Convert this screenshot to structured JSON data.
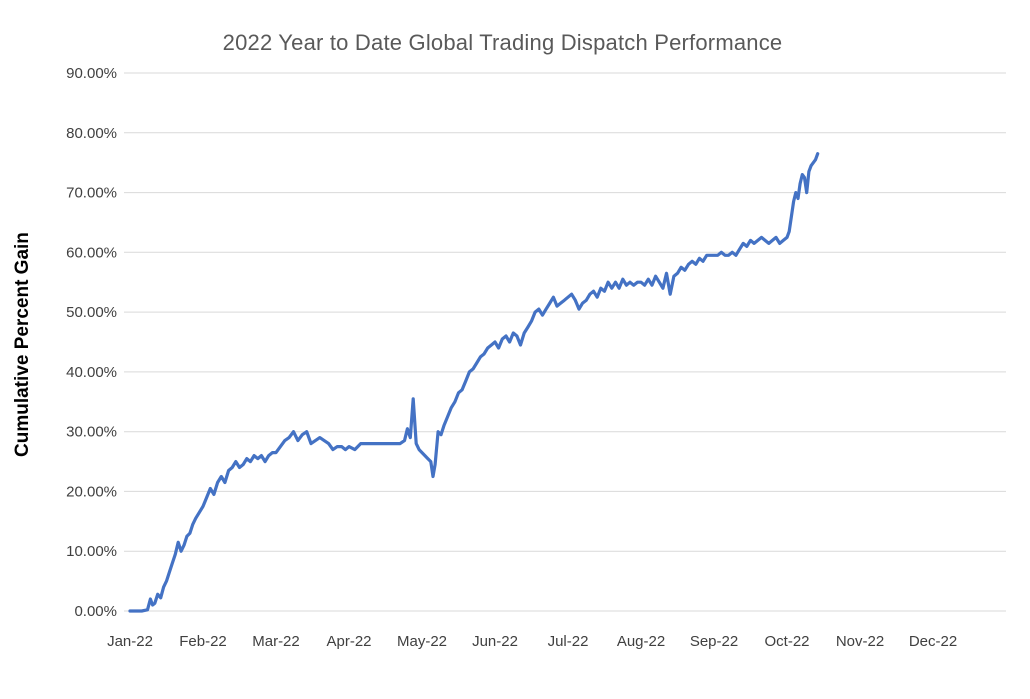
{
  "chart_data": {
    "type": "line",
    "title": "2022 Year to Date Global Trading Dispatch Performance",
    "ylabel": "Cumulative Percent Gain",
    "xlabel": "",
    "ylim": [
      0,
      90
    ],
    "ytick_step": 10,
    "ytick_suffix": "%",
    "ytick_decimals": 2,
    "x_tick_labels": [
      "Jan-22",
      "Feb-22",
      "Mar-22",
      "Apr-22",
      "May-22",
      "Jun-22",
      "Jul-22",
      "Aug-22",
      "Sep-22",
      "Oct-22",
      "Nov-22",
      "Dec-22"
    ],
    "x_range_months": [
      0,
      12
    ],
    "grid": "horizontal-only",
    "legend": "none",
    "line_color": "#4472c4",
    "gridline_color": "#d9d9d9",
    "title_color": "#595959",
    "tick_label_color": "#404040",
    "series": [
      {
        "name": "Cumulative Percent Gain",
        "points": [
          [
            0.0,
            0.0
          ],
          [
            0.08,
            0.0
          ],
          [
            0.16,
            0.0
          ],
          [
            0.24,
            0.2
          ],
          [
            0.28,
            2.0
          ],
          [
            0.31,
            1.0
          ],
          [
            0.34,
            1.3
          ],
          [
            0.38,
            2.8
          ],
          [
            0.42,
            2.2
          ],
          [
            0.46,
            4.0
          ],
          [
            0.5,
            5.0
          ],
          [
            0.54,
            6.5
          ],
          [
            0.58,
            8.0
          ],
          [
            0.62,
            9.5
          ],
          [
            0.66,
            11.5
          ],
          [
            0.7,
            10.0
          ],
          [
            0.74,
            11.0
          ],
          [
            0.78,
            12.5
          ],
          [
            0.82,
            13.0
          ],
          [
            0.86,
            14.5
          ],
          [
            0.9,
            15.5
          ],
          [
            0.95,
            16.5
          ],
          [
            1.0,
            17.5
          ],
          [
            1.05,
            19.0
          ],
          [
            1.1,
            20.5
          ],
          [
            1.15,
            19.5
          ],
          [
            1.2,
            21.5
          ],
          [
            1.25,
            22.5
          ],
          [
            1.3,
            21.5
          ],
          [
            1.35,
            23.5
          ],
          [
            1.4,
            24.0
          ],
          [
            1.45,
            25.0
          ],
          [
            1.5,
            24.0
          ],
          [
            1.55,
            24.5
          ],
          [
            1.6,
            25.5
          ],
          [
            1.65,
            25.0
          ],
          [
            1.7,
            26.0
          ],
          [
            1.75,
            25.5
          ],
          [
            1.8,
            26.0
          ],
          [
            1.85,
            25.0
          ],
          [
            1.9,
            26.0
          ],
          [
            1.95,
            26.5
          ],
          [
            2.0,
            26.5
          ],
          [
            2.06,
            27.5
          ],
          [
            2.12,
            28.5
          ],
          [
            2.18,
            29.0
          ],
          [
            2.24,
            30.0
          ],
          [
            2.3,
            28.5
          ],
          [
            2.36,
            29.5
          ],
          [
            2.42,
            30.0
          ],
          [
            2.48,
            28.0
          ],
          [
            2.54,
            28.5
          ],
          [
            2.6,
            29.0
          ],
          [
            2.66,
            28.5
          ],
          [
            2.72,
            28.0
          ],
          [
            2.78,
            27.0
          ],
          [
            2.84,
            27.5
          ],
          [
            2.9,
            27.5
          ],
          [
            2.95,
            27.0
          ],
          [
            3.0,
            27.5
          ],
          [
            3.08,
            27.0
          ],
          [
            3.16,
            28.0
          ],
          [
            3.24,
            28.0
          ],
          [
            3.32,
            28.0
          ],
          [
            3.4,
            28.0
          ],
          [
            3.48,
            28.0
          ],
          [
            3.56,
            28.0
          ],
          [
            3.64,
            28.0
          ],
          [
            3.7,
            28.0
          ],
          [
            3.76,
            28.5
          ],
          [
            3.8,
            30.5
          ],
          [
            3.84,
            29.0
          ],
          [
            3.88,
            35.5
          ],
          [
            3.92,
            28.0
          ],
          [
            3.96,
            27.0
          ],
          [
            4.0,
            26.5
          ],
          [
            4.04,
            26.0
          ],
          [
            4.08,
            25.5
          ],
          [
            4.12,
            25.0
          ],
          [
            4.15,
            22.5
          ],
          [
            4.18,
            24.5
          ],
          [
            4.22,
            30.0
          ],
          [
            4.26,
            29.5
          ],
          [
            4.3,
            31.0
          ],
          [
            4.35,
            32.5
          ],
          [
            4.4,
            34.0
          ],
          [
            4.45,
            35.0
          ],
          [
            4.5,
            36.5
          ],
          [
            4.55,
            37.0
          ],
          [
            4.6,
            38.5
          ],
          [
            4.65,
            40.0
          ],
          [
            4.7,
            40.5
          ],
          [
            4.75,
            41.5
          ],
          [
            4.8,
            42.5
          ],
          [
            4.85,
            43.0
          ],
          [
            4.9,
            44.0
          ],
          [
            4.95,
            44.5
          ],
          [
            5.0,
            45.0
          ],
          [
            5.05,
            44.0
          ],
          [
            5.1,
            45.5
          ],
          [
            5.15,
            46.0
          ],
          [
            5.2,
            45.0
          ],
          [
            5.25,
            46.5
          ],
          [
            5.3,
            46.0
          ],
          [
            5.35,
            44.5
          ],
          [
            5.4,
            46.5
          ],
          [
            5.45,
            47.5
          ],
          [
            5.5,
            48.5
          ],
          [
            5.55,
            50.0
          ],
          [
            5.6,
            50.5
          ],
          [
            5.65,
            49.5
          ],
          [
            5.7,
            50.5
          ],
          [
            5.75,
            51.5
          ],
          [
            5.8,
            52.5
          ],
          [
            5.85,
            51.0
          ],
          [
            5.9,
            51.5
          ],
          [
            5.95,
            52.0
          ],
          [
            6.0,
            52.5
          ],
          [
            6.05,
            53.0
          ],
          [
            6.1,
            52.0
          ],
          [
            6.15,
            50.5
          ],
          [
            6.2,
            51.5
          ],
          [
            6.25,
            52.0
          ],
          [
            6.3,
            53.0
          ],
          [
            6.35,
            53.5
          ],
          [
            6.4,
            52.5
          ],
          [
            6.45,
            54.0
          ],
          [
            6.5,
            53.5
          ],
          [
            6.55,
            55.0
          ],
          [
            6.6,
            54.0
          ],
          [
            6.65,
            55.0
          ],
          [
            6.7,
            54.0
          ],
          [
            6.75,
            55.5
          ],
          [
            6.8,
            54.5
          ],
          [
            6.85,
            55.0
          ],
          [
            6.9,
            54.5
          ],
          [
            6.95,
            55.0
          ],
          [
            7.0,
            55.0
          ],
          [
            7.05,
            54.5
          ],
          [
            7.1,
            55.5
          ],
          [
            7.15,
            54.5
          ],
          [
            7.2,
            56.0
          ],
          [
            7.25,
            55.0
          ],
          [
            7.3,
            54.0
          ],
          [
            7.35,
            56.5
          ],
          [
            7.4,
            53.0
          ],
          [
            7.45,
            56.0
          ],
          [
            7.5,
            56.5
          ],
          [
            7.55,
            57.5
          ],
          [
            7.6,
            57.0
          ],
          [
            7.65,
            58.0
          ],
          [
            7.7,
            58.5
          ],
          [
            7.75,
            58.0
          ],
          [
            7.8,
            59.0
          ],
          [
            7.85,
            58.5
          ],
          [
            7.9,
            59.5
          ],
          [
            7.95,
            59.5
          ],
          [
            8.0,
            59.5
          ],
          [
            8.05,
            59.5
          ],
          [
            8.1,
            60.0
          ],
          [
            8.15,
            59.5
          ],
          [
            8.2,
            59.5
          ],
          [
            8.25,
            60.0
          ],
          [
            8.3,
            59.5
          ],
          [
            8.35,
            60.5
          ],
          [
            8.4,
            61.5
          ],
          [
            8.45,
            61.0
          ],
          [
            8.5,
            62.0
          ],
          [
            8.55,
            61.5
          ],
          [
            8.6,
            62.0
          ],
          [
            8.65,
            62.5
          ],
          [
            8.7,
            62.0
          ],
          [
            8.75,
            61.5
          ],
          [
            8.8,
            62.0
          ],
          [
            8.85,
            62.5
          ],
          [
            8.9,
            61.5
          ],
          [
            8.95,
            62.0
          ],
          [
            9.0,
            62.5
          ],
          [
            9.03,
            63.5
          ],
          [
            9.06,
            66.0
          ],
          [
            9.09,
            68.5
          ],
          [
            9.12,
            70.0
          ],
          [
            9.15,
            69.0
          ],
          [
            9.18,
            71.5
          ],
          [
            9.21,
            73.0
          ],
          [
            9.24,
            72.5
          ],
          [
            9.27,
            70.0
          ],
          [
            9.3,
            73.5
          ],
          [
            9.33,
            74.5
          ],
          [
            9.36,
            75.0
          ],
          [
            9.39,
            75.5
          ],
          [
            9.42,
            76.5
          ]
        ]
      }
    ]
  }
}
